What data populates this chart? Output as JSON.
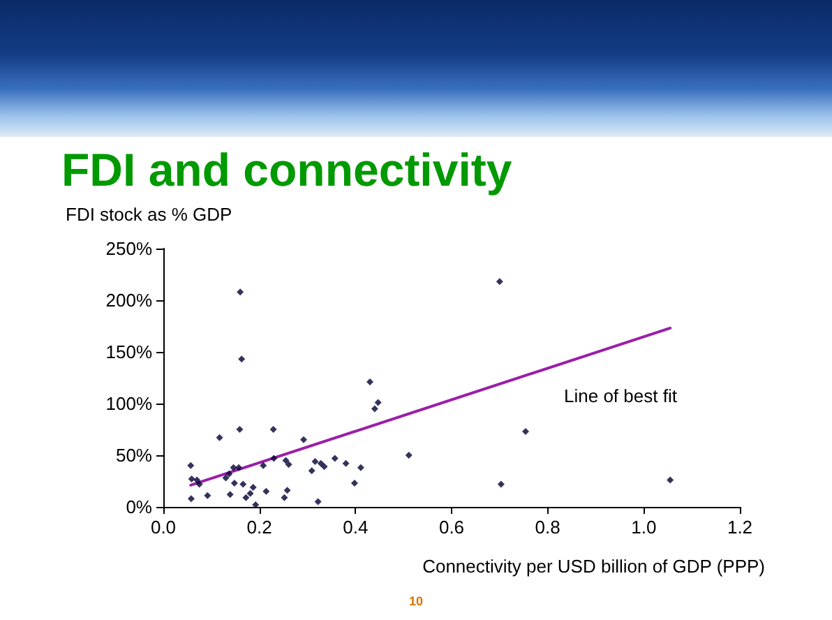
{
  "chart_data": {
    "type": "scatter",
    "title": "FDI and connectivity",
    "xlabel": "Connectivity per USD billion of GDP (PPP)",
    "ylabel": "FDI stock as % GDP",
    "series": [
      {
        "color": "#000033",
        "marker": "diamond",
        "x": [
          0.057,
          0.059,
          0.07,
          0.075,
          0.058,
          0.092,
          0.117,
          0.13,
          0.137,
          0.139,
          0.146,
          0.148,
          0.157,
          0.16,
          0.163,
          0.159,
          0.166,
          0.172,
          0.181,
          0.187,
          0.192,
          0.208,
          0.214,
          0.229,
          0.23,
          0.252,
          0.255,
          0.258,
          0.261,
          0.292,
          0.309,
          0.316,
          0.322,
          0.328,
          0.335,
          0.357,
          0.38,
          0.398,
          0.411,
          0.43,
          0.44,
          0.447,
          0.511,
          0.7,
          0.754,
          0.703,
          1.055
        ],
        "values": [
          40,
          27,
          26,
          22,
          8,
          11,
          67,
          28,
          32,
          12,
          38,
          23,
          38,
          208,
          143,
          75,
          22,
          9,
          13,
          19,
          2,
          40,
          15,
          75,
          47,
          9,
          45,
          16,
          41,
          65,
          35,
          44,
          5,
          42,
          39,
          47,
          42,
          23,
          38,
          121,
          95,
          101,
          50,
          218,
          73,
          22,
          26
        ]
      },
      {
        "type": "line",
        "color": "#9b1fa8",
        "marker": "none",
        "line_style": "solid",
        "x": [
          0.057,
          1.055
        ],
        "values": [
          21,
          173
        ]
      }
    ],
    "xlim": [
      0,
      1.2
    ],
    "xticks": [
      {
        "value": 0,
        "label": "0.0"
      },
      {
        "value": 0.2,
        "label": "0.2"
      },
      {
        "value": 0.4,
        "label": "0.4"
      },
      {
        "value": 0.6,
        "label": "0.6"
      },
      {
        "value": 0.8,
        "label": "0.8"
      },
      {
        "value": 1,
        "label": "1.0"
      },
      {
        "value": 1.2,
        "label": "1.2"
      }
    ],
    "ylim": [
      0,
      250
    ],
    "yticks": [
      {
        "value": 0,
        "label": "0%"
      },
      {
        "value": 50,
        "label": "50%"
      },
      {
        "value": 100,
        "label": "100%"
      },
      {
        "value": 150,
        "label": "150%"
      },
      {
        "value": 200,
        "label": "200%"
      },
      {
        "value": 250,
        "label": "250%"
      }
    ],
    "grid": false,
    "annotations": [
      "Line of best fit",
      "10"
    ]
  }
}
